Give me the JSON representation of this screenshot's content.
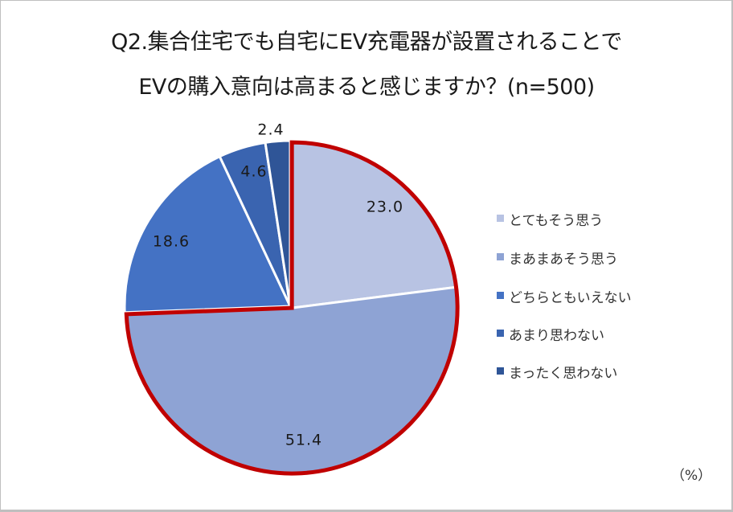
{
  "title": {
    "line1": "Q2.集合住宅でも自宅にEV充電器が設置されることで",
    "line2": "EVの購入意向は高まると感じますか？(n=500)"
  },
  "unit_label": "（%）",
  "highlight": {
    "color": "#c00000",
    "slices": [
      0,
      1
    ]
  },
  "chart_data": {
    "type": "pie",
    "title": "Q2.集合住宅でも自宅にEV充電器が設置されることで EVの購入意向は高まると感じますか？(n=500)",
    "categories": [
      "とてもそう思う",
      "まあまあそう思う",
      "どちらともいえない",
      "あまり思わない",
      "まったく思わない"
    ],
    "values": [
      23.0,
      51.4,
      18.6,
      4.6,
      2.4
    ],
    "labels": [
      "23.0",
      "51.4",
      "18.6",
      "4.6",
      "2.4"
    ],
    "colors": [
      "#b8c3e3",
      "#8ea3d4",
      "#4472c4",
      "#3a64b0",
      "#2f5597"
    ],
    "unit": "%",
    "start_angle": "12 o'clock, clockwise",
    "legend_position": "right"
  },
  "legend": {
    "items": [
      {
        "label": "とてもそう思う",
        "color": "#b8c3e3"
      },
      {
        "label": "まあまあそう思う",
        "color": "#8ea3d4"
      },
      {
        "label": "どちらともいえない",
        "color": "#4472c4"
      },
      {
        "label": "あまり思わない",
        "color": "#3a64b0"
      },
      {
        "label": "まったく思わない",
        "color": "#2f5597"
      }
    ]
  }
}
